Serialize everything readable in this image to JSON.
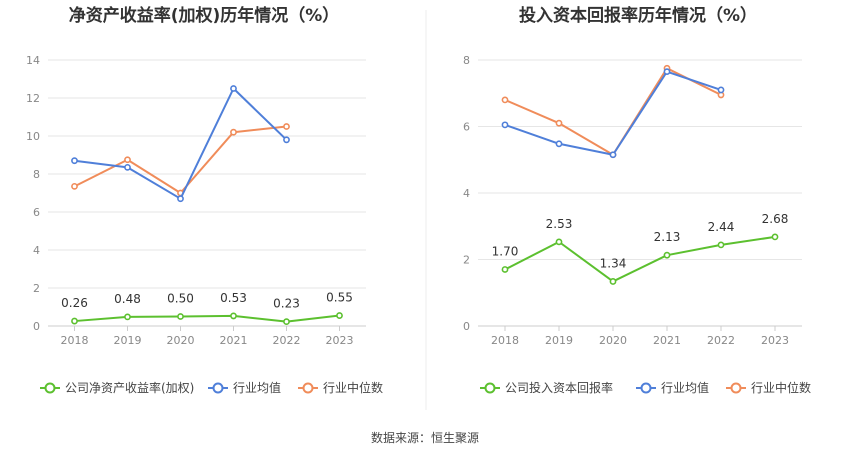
{
  "source": "数据来源：恒生聚源",
  "colors": {
    "company": "#5cc02f",
    "industry_avg": "#4f7fd9",
    "industry_median": "#f08c5a",
    "grid": "#e6e6e6",
    "axis": "#cccccc"
  },
  "chart_data": [
    {
      "type": "line",
      "title": "净资产收益率(加权)历年情况（%）",
      "categories": [
        "2018",
        "2019",
        "2020",
        "2021",
        "2022",
        "2023"
      ],
      "ylim": [
        0,
        14
      ],
      "yticks": [
        0,
        2,
        4,
        6,
        8,
        10,
        12,
        14
      ],
      "grid": true,
      "legend_position": "bottom",
      "series": [
        {
          "name": "公司净资产收益率(加权)",
          "values": [
            0.26,
            0.48,
            0.5,
            0.53,
            0.23,
            0.55
          ],
          "labels": [
            "0.26",
            "0.48",
            "0.50",
            "0.53",
            "0.23",
            "0.55"
          ]
        },
        {
          "name": "行业均值",
          "values": [
            8.7,
            8.35,
            6.7,
            12.5,
            9.8,
            null
          ]
        },
        {
          "name": "行业中位数",
          "values": [
            7.35,
            8.75,
            7.0,
            10.2,
            10.5,
            null
          ]
        }
      ]
    },
    {
      "type": "line",
      "title": "投入资本回报率历年情况（%）",
      "categories": [
        "2018",
        "2019",
        "2020",
        "2021",
        "2022",
        "2023"
      ],
      "ylim": [
        0,
        8
      ],
      "yticks": [
        0,
        2,
        4,
        6,
        8
      ],
      "grid": true,
      "legend_position": "bottom",
      "series": [
        {
          "name": "公司投入资本回报率",
          "values": [
            1.7,
            2.53,
            1.34,
            2.13,
            2.44,
            2.68
          ],
          "labels": [
            "1.70",
            "2.53",
            "1.34",
            "2.13",
            "2.44",
            "2.68"
          ]
        },
        {
          "name": "行业均值",
          "values": [
            6.05,
            5.48,
            5.15,
            7.65,
            7.1,
            null
          ]
        },
        {
          "name": "行业中位数",
          "values": [
            6.8,
            6.1,
            5.15,
            7.75,
            6.95,
            null
          ]
        }
      ]
    }
  ]
}
